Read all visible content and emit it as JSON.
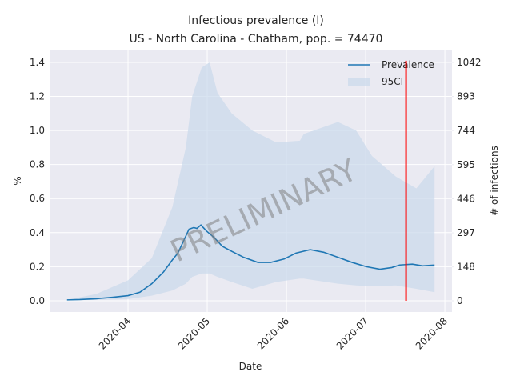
{
  "chart_data": {
    "type": "line",
    "title": "Infectious prevalence (I)",
    "subtitle": "US - North Carolina - Chatham, pop. = 74470",
    "xlabel": "Date",
    "ylabel": "%",
    "y2label": "# of infections",
    "xlim": [
      3.01,
      8.09
    ],
    "xticks": [
      {
        "value": 4,
        "label": "2020-04"
      },
      {
        "value": 5,
        "label": "2020-05"
      },
      {
        "value": 6,
        "label": "2020-06"
      },
      {
        "value": 7,
        "label": "2020-07"
      },
      {
        "value": 8,
        "label": "2020-08"
      }
    ],
    "ylim": [
      -0.066,
      1.475
    ],
    "yticks": [
      {
        "value": 0,
        "label": "0.0"
      },
      {
        "value": 0.2,
        "label": "0.2"
      },
      {
        "value": 0.4,
        "label": "0.4"
      },
      {
        "value": 0.6,
        "label": "0.6"
      },
      {
        "value": 0.8,
        "label": "0.8"
      },
      {
        "value": 1.0,
        "label": "1.0"
      },
      {
        "value": 1.2,
        "label": "1.2"
      },
      {
        "value": 1.4,
        "label": "1.4"
      }
    ],
    "y2lim": [
      -49,
      1098
    ],
    "y2ticks": [
      0,
      148,
      297,
      446,
      595,
      744,
      893,
      1042
    ],
    "grid": true,
    "legend": "upper right",
    "watermark": "PRELIMINARY",
    "series": [
      {
        "name": "Prevalence",
        "color": "#1f77b4",
        "x": [
          3.23,
          3.39,
          3.6,
          3.8,
          4.0,
          4.15,
          4.3,
          4.45,
          4.56,
          4.63,
          4.71,
          4.77,
          4.83,
          4.87,
          4.92,
          4.99,
          5.09,
          5.19,
          5.31,
          5.46,
          5.64,
          5.8,
          5.97,
          6.12,
          6.3,
          6.47,
          6.65,
          6.83,
          7.01,
          7.18,
          7.33,
          7.43,
          7.59,
          7.72,
          7.87
        ],
        "values": [
          0.005,
          0.007,
          0.012,
          0.02,
          0.03,
          0.05,
          0.1,
          0.17,
          0.24,
          0.28,
          0.36,
          0.42,
          0.43,
          0.425,
          0.445,
          0.41,
          0.37,
          0.32,
          0.29,
          0.255,
          0.225,
          0.225,
          0.245,
          0.28,
          0.3,
          0.285,
          0.255,
          0.225,
          0.2,
          0.185,
          0.195,
          0.21,
          0.215,
          0.205,
          0.21
        ]
      },
      {
        "name": "95CI",
        "color": "#c9d9eb",
        "band": true,
        "x": [
          3.23,
          3.6,
          4.0,
          4.3,
          4.56,
          4.73,
          4.81,
          4.93,
          5.03,
          5.13,
          5.31,
          5.57,
          5.87,
          6.17,
          6.22,
          6.65,
          6.88,
          7.08,
          7.38,
          7.64,
          7.87
        ],
        "upper": [
          0.005,
          0.04,
          0.12,
          0.25,
          0.55,
          0.9,
          1.2,
          1.37,
          1.4,
          1.22,
          1.1,
          1.0,
          0.93,
          0.94,
          0.98,
          1.05,
          1.0,
          0.85,
          0.73,
          0.66,
          0.79
        ],
        "lower": [
          0.002,
          0.005,
          0.01,
          0.03,
          0.06,
          0.1,
          0.14,
          0.16,
          0.16,
          0.14,
          0.11,
          0.07,
          0.11,
          0.13,
          0.13,
          0.1,
          0.09,
          0.085,
          0.09,
          0.07,
          0.05
        ]
      }
    ],
    "vline": {
      "x": 7.51,
      "ymin": 0,
      "ymax": 1.41,
      "color": "#ff0000"
    }
  }
}
